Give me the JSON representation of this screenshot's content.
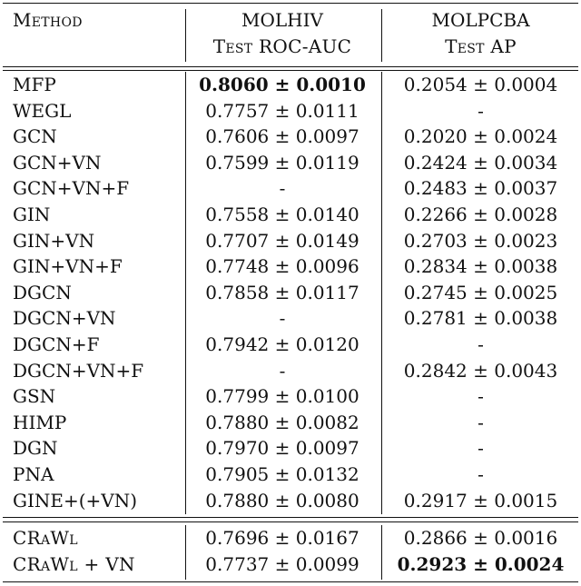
{
  "header": {
    "method": "Method",
    "hiv_dataset": "MOLHIV",
    "hiv_metric": "Test ROC-AUC",
    "pcba_dataset": "MOLPCBA",
    "pcba_metric": "Test AP"
  },
  "rows": [
    {
      "method": "MFP",
      "hiv": "0.8060 ± 0.0010",
      "pcba": "0.2054 ± 0.0004"
    },
    {
      "method": "WEGL",
      "hiv": "0.7757 ± 0.0111",
      "pcba": "-"
    },
    {
      "method": "GCN",
      "hiv": "0.7606 ± 0.0097",
      "pcba": "0.2020 ± 0.0024"
    },
    {
      "method": "GCN+VN",
      "hiv": "0.7599 ± 0.0119",
      "pcba": "0.2424 ± 0.0034"
    },
    {
      "method": "GCN+VN+F",
      "hiv": "-",
      "pcba": "0.2483 ± 0.0037"
    },
    {
      "method": "GIN",
      "hiv": "0.7558 ± 0.0140",
      "pcba": "0.2266 ± 0.0028"
    },
    {
      "method": "GIN+VN",
      "hiv": "0.7707 ± 0.0149",
      "pcba": "0.2703 ± 0.0023"
    },
    {
      "method": "GIN+VN+F",
      "hiv": "0.7748 ± 0.0096",
      "pcba": "0.2834 ± 0.0038"
    },
    {
      "method": "DGCN",
      "hiv": "0.7858 ± 0.0117",
      "pcba": "0.2745 ± 0.0025"
    },
    {
      "method": "DGCN+VN",
      "hiv": "-",
      "pcba": "0.2781 ± 0.0038"
    },
    {
      "method": "DGCN+F",
      "hiv": "0.7942 ± 0.0120",
      "pcba": "-"
    },
    {
      "method": "DGCN+VN+F",
      "hiv": "-",
      "pcba": "0.2842 ± 0.0043"
    },
    {
      "method": "GSN",
      "hiv": "0.7799 ± 0.0100",
      "pcba": "-"
    },
    {
      "method": "HIMP",
      "hiv": "0.7880 ± 0.0082",
      "pcba": "-"
    },
    {
      "method": "DGN",
      "hiv": "0.7970 ± 0.0097",
      "pcba": "-"
    },
    {
      "method": "PNA",
      "hiv": "0.7905 ± 0.0132",
      "pcba": "-"
    },
    {
      "method": "GINE+(+VN)",
      "hiv": "0.7880 ± 0.0080",
      "pcba": "0.2917 ± 0.0015"
    }
  ],
  "crawl_rows": [
    {
      "method": "CRaWl",
      "hiv": "0.7696 ± 0.0167",
      "pcba": "0.2866 ± 0.0016"
    },
    {
      "method": "CRaWl + VN",
      "hiv": "0.7737 ± 0.0099",
      "pcba": "0.2923 ± 0.0024"
    }
  ],
  "best": {
    "hiv": "MFP",
    "pcba": "CRaWl + VN"
  }
}
